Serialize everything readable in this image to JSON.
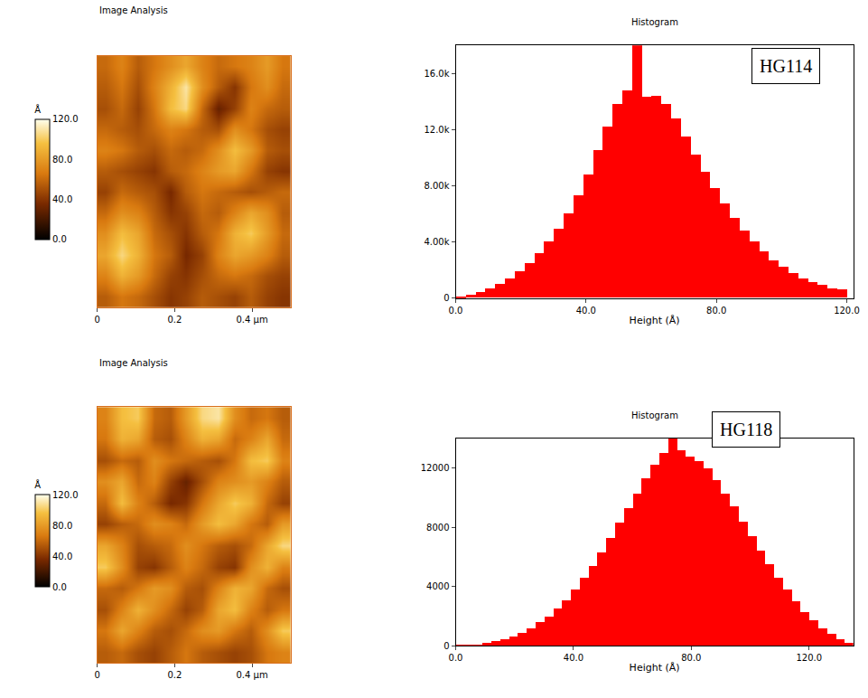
{
  "chart_data": [
    {
      "type": "heatmap",
      "title": "Image Analysis",
      "x": [
        0.021,
        0.063,
        0.104,
        0.146,
        0.188,
        0.229,
        0.271,
        0.313,
        0.354,
        0.396,
        0.438,
        0.479
      ],
      "y": [
        0.021,
        0.063,
        0.104,
        0.146,
        0.188,
        0.229,
        0.271,
        0.313,
        0.354,
        0.396,
        0.438,
        0.479
      ],
      "z": [
        [
          55,
          65,
          60,
          50,
          40,
          45,
          55,
          50,
          45,
          55,
          45,
          40
        ],
        [
          70,
          90,
          80,
          60,
          45,
          40,
          50,
          60,
          65,
          60,
          50,
          45
        ],
        [
          85,
          105,
          90,
          65,
          55,
          35,
          45,
          70,
          85,
          80,
          70,
          55
        ],
        [
          75,
          95,
          85,
          60,
          50,
          40,
          55,
          65,
          90,
          100,
          80,
          60
        ],
        [
          60,
          75,
          70,
          55,
          40,
          45,
          60,
          55,
          70,
          85,
          75,
          55
        ],
        [
          45,
          60,
          55,
          50,
          35,
          55,
          65,
          60,
          55,
          50,
          55,
          60
        ],
        [
          55,
          50,
          45,
          40,
          55,
          60,
          70,
          80,
          85,
          65,
          45,
          40
        ],
        [
          70,
          65,
          55,
          50,
          60,
          55,
          60,
          75,
          95,
          80,
          55,
          50
        ],
        [
          60,
          55,
          50,
          60,
          70,
          65,
          55,
          50,
          75,
          65,
          50,
          45
        ],
        [
          50,
          60,
          45,
          65,
          95,
          105,
          60,
          30,
          45,
          70,
          60,
          55
        ],
        [
          55,
          65,
          50,
          70,
          90,
          110,
          75,
          55,
          40,
          65,
          75,
          60
        ],
        [
          60,
          70,
          55,
          65,
          75,
          85,
          70,
          60,
          65,
          70,
          80,
          65
        ]
      ],
      "xlim": [
        0,
        0.5
      ],
      "ylim": [
        0,
        0.5
      ],
      "xticks": [
        0,
        0.2,
        {
          "value": 0.4,
          "label": "0.4 µm"
        }
      ],
      "tick_labels": "x",
      "colorbar_title": "Å",
      "zlim": [
        0,
        120
      ],
      "zticks": [
        {
          "value": 0,
          "label": "0.0"
        },
        {
          "value": 40,
          "label": "40.0"
        },
        {
          "value": 80,
          "label": "80.0"
        },
        {
          "value": 120,
          "label": "120.0"
        }
      ]
    },
    {
      "type": "histogram",
      "title": "Histogram",
      "x_label": "Height (Å)",
      "bins": [
        0,
        3,
        6,
        9,
        12,
        15,
        18,
        21,
        24,
        27,
        30,
        33,
        36,
        39,
        42,
        45,
        48,
        51,
        54,
        57,
        60,
        63,
        66,
        69,
        72,
        75,
        78,
        81,
        84,
        87,
        90,
        93,
        96,
        99,
        102,
        105,
        108,
        111,
        114,
        117,
        120
      ],
      "counts": [
        100,
        200,
        400,
        700,
        1000,
        1400,
        1900,
        2500,
        3200,
        4000,
        4900,
        6000,
        7300,
        8800,
        10500,
        12200,
        13800,
        14800,
        18000,
        14300,
        14400,
        13800,
        12800,
        11500,
        10200,
        9000,
        7800,
        6700,
        5700,
        4800,
        4000,
        3300,
        2700,
        2200,
        1800,
        1400,
        1100,
        900,
        700,
        600
      ],
      "color": "#ff0000",
      "xlim": [
        0,
        122
      ],
      "ylim": [
        0,
        18000
      ],
      "xticks": [
        {
          "value": 0,
          "label": "0.0"
        },
        {
          "value": 40,
          "label": "40.0"
        },
        {
          "value": 80,
          "label": "80.0"
        },
        {
          "value": 120,
          "label": "120.0"
        }
      ],
      "yticks": [
        0,
        {
          "value": 4000,
          "label": "4.00k"
        },
        {
          "value": 8000,
          "label": "8.00k"
        },
        {
          "value": 12000,
          "label": "12.0k"
        },
        {
          "value": 16000,
          "label": "16.0k"
        }
      ],
      "annotations": [
        {
          "text": "HG114"
        }
      ]
    },
    {
      "type": "heatmap",
      "title": "Image Analysis",
      "x": [
        0.021,
        0.063,
        0.104,
        0.146,
        0.188,
        0.229,
        0.271,
        0.313,
        0.354,
        0.396,
        0.438,
        0.479
      ],
      "y": [
        0.021,
        0.063,
        0.104,
        0.146,
        0.188,
        0.229,
        0.271,
        0.313,
        0.354,
        0.396,
        0.438,
        0.479
      ],
      "z": [
        [
          55,
          60,
          50,
          45,
          55,
          65,
          55,
          50,
          45,
          50,
          65,
          70
        ],
        [
          65,
          85,
          70,
          55,
          50,
          60,
          75,
          80,
          65,
          55,
          75,
          100
        ],
        [
          50,
          70,
          90,
          75,
          60,
          45,
          55,
          85,
          95,
          70,
          55,
          65
        ],
        [
          60,
          55,
          65,
          80,
          75,
          55,
          50,
          70,
          90,
          85,
          60,
          50
        ],
        [
          100,
          75,
          45,
          40,
          55,
          70,
          60,
          45,
          40,
          75,
          90,
          70
        ],
        [
          85,
          70,
          50,
          55,
          60,
          75,
          65,
          55,
          50,
          60,
          85,
          105
        ],
        [
          45,
          55,
          60,
          75,
          70,
          60,
          80,
          95,
          85,
          65,
          55,
          80
        ],
        [
          60,
          95,
          70,
          55,
          35,
          40,
          65,
          85,
          100,
          90,
          60,
          45
        ],
        [
          75,
          85,
          60,
          70,
          45,
          30,
          50,
          70,
          75,
          80,
          70,
          55
        ],
        [
          50,
          60,
          55,
          75,
          65,
          60,
          55,
          50,
          65,
          95,
          100,
          70
        ],
        [
          65,
          90,
          85,
          55,
          50,
          70,
          90,
          85,
          60,
          70,
          85,
          60
        ],
        [
          70,
          95,
          100,
          60,
          55,
          80,
          105,
          110,
          75,
          60,
          65,
          55
        ]
      ],
      "xlim": [
        0,
        0.5
      ],
      "ylim": [
        0,
        0.5
      ],
      "xticks": [
        0,
        0.2,
        {
          "value": 0.4,
          "label": "0.4 µm"
        }
      ],
      "tick_labels": "x",
      "colorbar_title": "Å",
      "zlim": [
        0,
        120
      ],
      "zticks": [
        {
          "value": 0,
          "label": "0.0"
        },
        {
          "value": 40,
          "label": "40.0"
        },
        {
          "value": 80,
          "label": "80.0"
        },
        {
          "value": 120,
          "label": "120.0"
        }
      ]
    },
    {
      "type": "histogram",
      "title": "Histogram",
      "x_label": "Height (Å)",
      "bins": [
        0,
        3,
        6,
        9,
        12,
        15,
        18,
        21,
        24,
        27,
        30,
        33,
        36,
        39,
        42,
        45,
        48,
        51,
        54,
        57,
        60,
        63,
        66,
        69,
        72,
        75,
        78,
        81,
        84,
        87,
        90,
        93,
        96,
        99,
        102,
        105,
        108,
        111,
        114,
        117,
        120,
        123,
        126,
        129,
        132,
        135
      ],
      "counts": [
        30,
        60,
        100,
        180,
        300,
        450,
        650,
        900,
        1200,
        1600,
        2000,
        2500,
        3100,
        3800,
        4600,
        5400,
        6300,
        7300,
        8300,
        9300,
        10300,
        11300,
        12200,
        13000,
        14000,
        13200,
        12800,
        12500,
        12000,
        11200,
        10300,
        9400,
        8400,
        7400,
        6400,
        5500,
        4600,
        3800,
        3000,
        2300,
        1700,
        1200,
        800,
        450,
        200
      ],
      "color": "#ff0000",
      "xlim": [
        0,
        135
      ],
      "ylim": [
        0,
        14000
      ],
      "xticks": [
        {
          "value": 0,
          "label": "0.0"
        },
        {
          "value": 40,
          "label": "40.0"
        },
        {
          "value": 80,
          "label": "80.0"
        },
        {
          "value": 120,
          "label": "120.0"
        }
      ],
      "yticks": [
        0,
        4000,
        8000,
        12000
      ],
      "annotations": [
        {
          "text": "HG118"
        }
      ]
    }
  ]
}
